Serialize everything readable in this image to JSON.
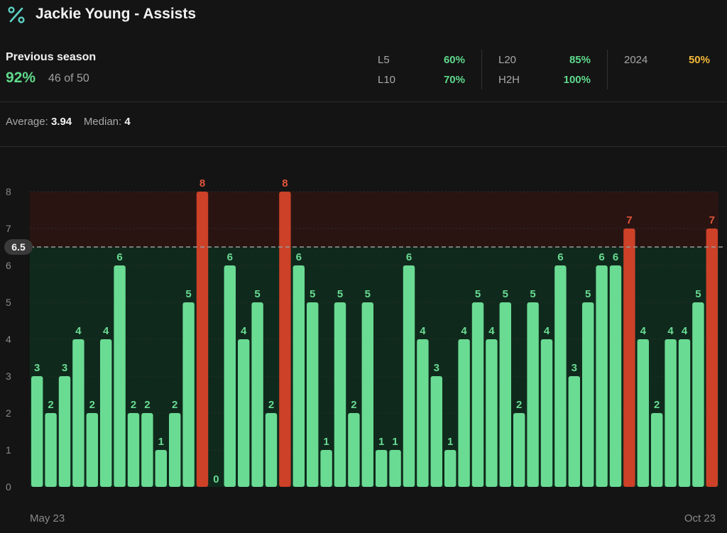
{
  "header": {
    "icon": "percent-icon",
    "title": "Jackie Young - Assists"
  },
  "summary": {
    "prev_label": "Previous season",
    "prev_pct": "92%",
    "prev_count": "46 of 50",
    "stats": [
      {
        "label": "L5",
        "value": "60%",
        "color": "#5fd98c"
      },
      {
        "label": "L10",
        "value": "70%",
        "color": "#5fd98c"
      },
      {
        "label": "L20",
        "value": "85%",
        "color": "#5fd98c"
      },
      {
        "label": "H2H",
        "value": "100%",
        "color": "#5fd98c"
      },
      {
        "label": "2024",
        "value": "50%",
        "color": "#f5b93a"
      }
    ]
  },
  "averages": {
    "average_label": "Average:",
    "average_value": "3.94",
    "median_label": "Median:",
    "median_value": "4"
  },
  "colors": {
    "under": "#6adb93",
    "over": "#cc4128",
    "under_zone": "#0f2a1c",
    "over_zone": "#2a1412"
  },
  "chart_data": {
    "type": "bar",
    "line": 6.5,
    "ylim": [
      0,
      8
    ],
    "yticks": [
      0,
      1,
      2,
      3,
      4,
      5,
      6,
      7,
      8
    ],
    "x_start_label": "May 23",
    "x_end_label": "Oct 23",
    "values": [
      3,
      2,
      3,
      4,
      2,
      4,
      6,
      2,
      2,
      1,
      2,
      5,
      8,
      0,
      6,
      4,
      5,
      2,
      8,
      6,
      5,
      1,
      5,
      2,
      5,
      1,
      1,
      6,
      4,
      3,
      1,
      4,
      5,
      4,
      5,
      2,
      5,
      4,
      6,
      3,
      5,
      6,
      6,
      7,
      4,
      2,
      4,
      4,
      5,
      7
    ]
  }
}
